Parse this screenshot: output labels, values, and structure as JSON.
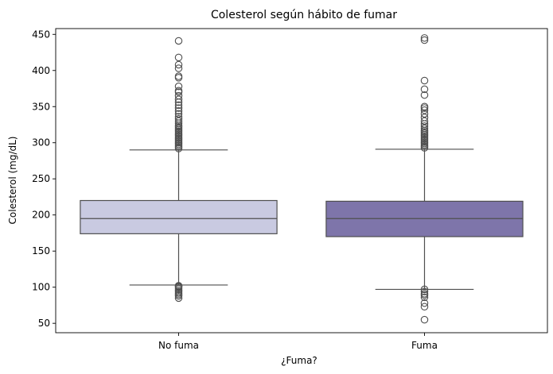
{
  "chart_data": {
    "type": "box",
    "title": "Colesterol según hábito de fumar",
    "xlabel": "¿Fuma?",
    "ylabel": "Colesterol (mg/dL)",
    "ylim": [
      37,
      458
    ],
    "yticks": [
      50,
      100,
      150,
      200,
      250,
      300,
      350,
      400,
      450
    ],
    "categories": [
      "No fuma",
      "Fuma"
    ],
    "series": [
      {
        "category": "No fuma",
        "color": "#c9cae1",
        "whisker_low": 103,
        "q1": 174,
        "median": 195,
        "q3": 220,
        "whisker_high": 290,
        "outliers": [
          85,
          88,
          90,
          92,
          94,
          96,
          98,
          100,
          101,
          102,
          292,
          294,
          296,
          298,
          300,
          302,
          304,
          306,
          308,
          310,
          312,
          314,
          316,
          318,
          320,
          322,
          324,
          327,
          330,
          333,
          336,
          340,
          344,
          348,
          352,
          356,
          360,
          365,
          370,
          372,
          378,
          390,
          392,
          403,
          408,
          418,
          441
        ]
      },
      {
        "category": "Fuma",
        "color": "#7e75aa",
        "whisker_low": 97,
        "q1": 170,
        "median": 195,
        "q3": 219,
        "whisker_high": 291,
        "outliers": [
          55,
          73,
          78,
          86,
          89,
          91,
          94,
          97,
          293,
          295,
          297,
          299,
          301,
          303,
          305,
          307,
          309,
          311,
          313,
          315,
          317,
          320,
          323,
          326,
          330,
          335,
          340,
          345,
          348,
          350,
          366,
          374,
          386,
          442,
          445
        ]
      }
    ],
    "grid": false,
    "legend": "none"
  }
}
